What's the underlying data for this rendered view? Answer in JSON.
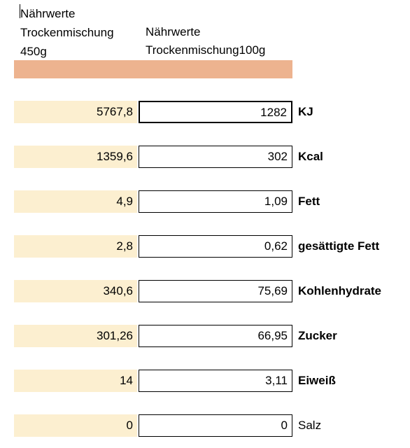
{
  "header": {
    "left": [
      "Nährwerte",
      "Trockenmischung",
      "450g"
    ],
    "right": [
      "Nährwerte",
      "Trockenmischung100g"
    ]
  },
  "colors": {
    "band": "#EDB38F",
    "total_cell": "#FCEFD0",
    "border": "#000000"
  },
  "rows": [
    {
      "total": "5767,8",
      "per100": "1282",
      "label": "KJ",
      "bold": true
    },
    {
      "total": "1359,6",
      "per100": "302",
      "label": "Kcal",
      "bold": true
    },
    {
      "total": "4,9",
      "per100": "1,09",
      "label": "Fett",
      "bold": true
    },
    {
      "total": "2,8",
      "per100": "0,62",
      "label": "gesättigte Fett",
      "bold": true
    },
    {
      "total": "340,6",
      "per100": "75,69",
      "label": "Kohlenhydrate",
      "bold": true
    },
    {
      "total": "301,26",
      "per100": "66,95",
      "label": "Zucker",
      "bold": true
    },
    {
      "total": "14",
      "per100": "3,11",
      "label": "Eiweiß",
      "bold": true
    },
    {
      "total": "0",
      "per100": "0",
      "label": "Salz",
      "bold": false
    }
  ]
}
